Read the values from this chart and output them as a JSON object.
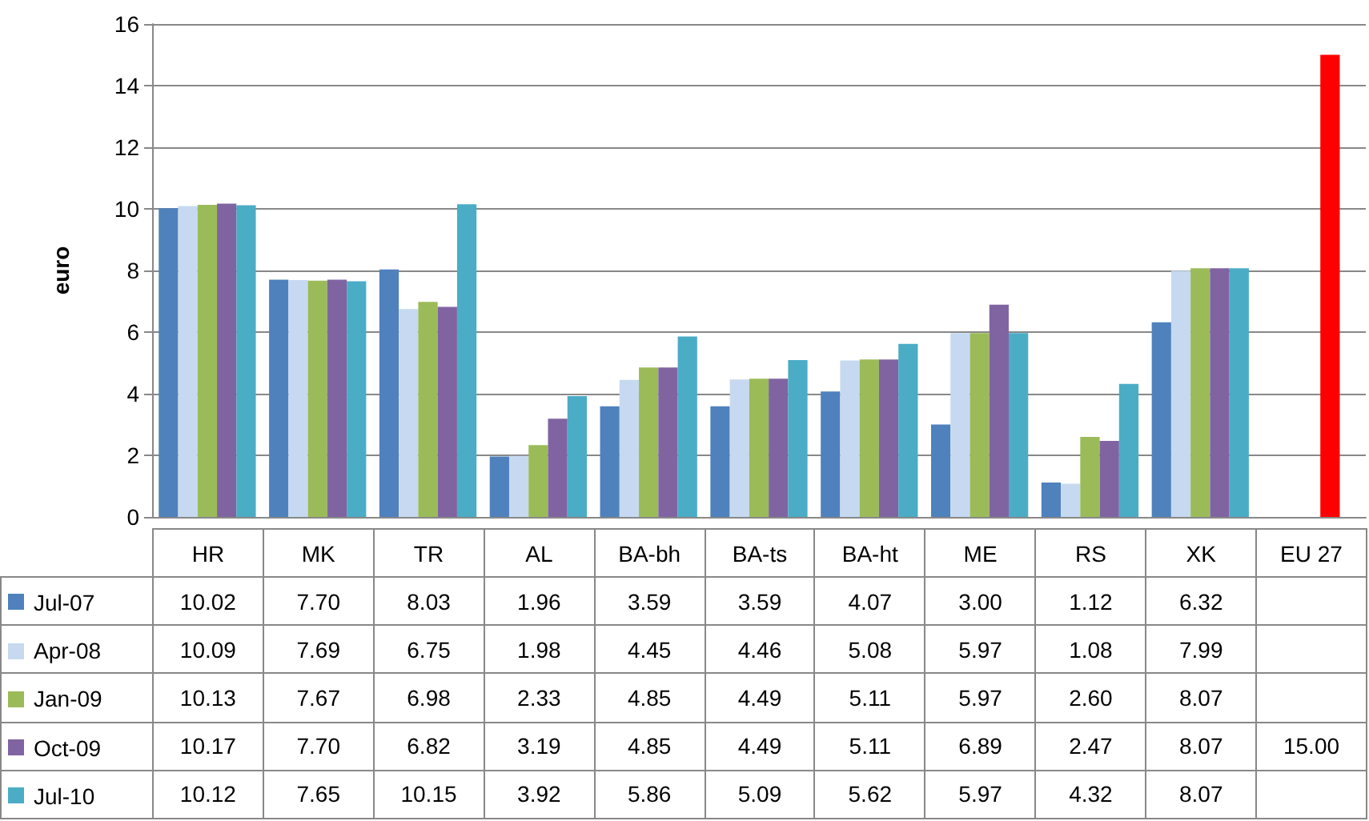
{
  "chart_data": {
    "type": "bar",
    "ylabel": "euro",
    "categories": [
      "HR",
      "MK",
      "TR",
      "AL",
      "BA-bh",
      "BA-ts",
      "BA-ht",
      "ME",
      "RS",
      "XK",
      "EU 27"
    ],
    "series": [
      {
        "name": "Jul-07",
        "color": "#4f81bd",
        "values": [
          10.02,
          7.7,
          8.03,
          1.96,
          3.59,
          3.59,
          4.07,
          3.0,
          1.12,
          6.32,
          null
        ],
        "value_labels": [
          "10.02",
          "7.70",
          "8.03",
          "1.96",
          "3.59",
          "3.59",
          "4.07",
          "3.00",
          "1.12",
          "6.32",
          null
        ]
      },
      {
        "name": "Apr-08",
        "color": "#c6d9f1",
        "values": [
          10.09,
          7.69,
          6.75,
          1.98,
          4.45,
          4.46,
          5.08,
          5.97,
          1.08,
          7.99,
          null
        ],
        "value_labels": [
          "10.09",
          "7.69",
          "6.75",
          "1.98",
          "4.45",
          "4.46",
          "5.08",
          "5.97",
          "1.08",
          "7.99",
          null
        ]
      },
      {
        "name": "Jan-09",
        "color": "#9bbb59",
        "values": [
          10.13,
          7.67,
          6.98,
          2.33,
          4.85,
          4.49,
          5.11,
          5.97,
          2.6,
          8.07,
          null
        ],
        "value_labels": [
          "10.13",
          "7.67",
          "6.98",
          "2.33",
          "4.85",
          "4.49",
          "5.11",
          "5.97",
          "2.60",
          "8.07",
          null
        ]
      },
      {
        "name": "Oct-09",
        "color": "#8064a2",
        "colors": [
          "#8064a2",
          "#8064a2",
          "#8064a2",
          "#8064a2",
          "#8064a2",
          "#8064a2",
          "#8064a2",
          "#8064a2",
          "#8064a2",
          "#8064a2",
          "#ff0000"
        ],
        "values": [
          10.17,
          7.7,
          6.82,
          3.19,
          4.85,
          4.49,
          5.11,
          6.89,
          2.47,
          8.07,
          15.0
        ],
        "value_labels": [
          "10.17",
          "7.70",
          "6.82",
          "3.19",
          "4.85",
          "4.49",
          "5.11",
          "6.89",
          "2.47",
          "8.07",
          "15.00"
        ]
      },
      {
        "name": "Jul-10",
        "color": "#4bacc6",
        "values": [
          10.12,
          7.65,
          10.15,
          3.92,
          5.86,
          5.09,
          5.62,
          5.97,
          4.32,
          8.07,
          null
        ],
        "value_labels": [
          "10.12",
          "7.65",
          "10.15",
          "3.92",
          "5.86",
          "5.09",
          "5.62",
          "5.97",
          "4.32",
          "8.07",
          null
        ]
      }
    ],
    "ylim": [
      0,
      16
    ],
    "yticks": [
      0,
      2,
      4,
      6,
      8,
      10,
      12,
      14,
      16
    ],
    "grid": "y",
    "legend": "bottom left"
  }
}
